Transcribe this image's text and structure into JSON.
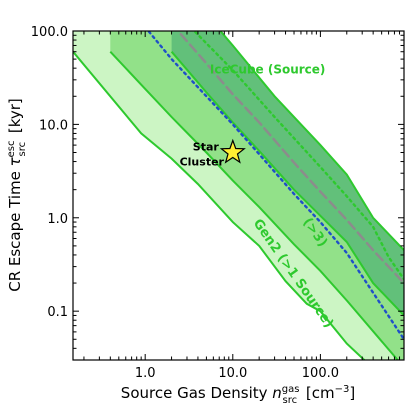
{
  "chart_data": {
    "type": "area",
    "title": "",
    "xlabel": "Source Gas Density $n_{\\rm src}^{\\rm gas}$ [cm$^{-3}$]",
    "xlabel_parts": {
      "pre": "Source Gas Density ",
      "var": "n",
      "sup": "gas",
      "sub": "src",
      "post": " [cm",
      "unit_sup": "−3",
      "close": "]"
    },
    "ylabel_parts": {
      "pre": "CR Escape Time ",
      "var": "τ",
      "sup": "esc",
      "sub": "src",
      "post": " [kyr]"
    },
    "xscale": "log",
    "yscale": "log",
    "xlim": [
      0.15,
      900
    ],
    "ylim": [
      0.03,
      100
    ],
    "x_ticks": [
      {
        "value": 1.0,
        "label": "1.0"
      },
      {
        "value": 10.0,
        "label": "10.0"
      },
      {
        "value": 100.0,
        "label": "100.0"
      }
    ],
    "y_ticks": [
      {
        "value": 0.1,
        "label": "0.1"
      },
      {
        "value": 1.0,
        "label": "1.0"
      },
      {
        "value": 10.0,
        "label": "10.0"
      },
      {
        "value": 100.0,
        "label": "100.0"
      }
    ],
    "bands": [
      {
        "label": "Gen2 (>1 Source)",
        "fill": "#ccf5c4",
        "edge": "#2ec92e",
        "lower": [
          [
            0.15,
            60
          ],
          [
            0.9,
            8
          ],
          [
            2.0,
            4.3
          ],
          [
            4.0,
            2.3
          ],
          [
            10.0,
            0.9
          ],
          [
            20.0,
            0.5
          ],
          [
            40.0,
            0.21
          ],
          [
            70.0,
            0.12
          ],
          [
            100.0,
            0.1
          ],
          [
            200.0,
            0.045
          ],
          [
            900.0,
            0.012
          ]
        ],
        "upper": [
          [
            0.15,
            600
          ],
          [
            1.0,
            60
          ],
          [
            2.0,
            30
          ],
          [
            5.0,
            12
          ],
          [
            10.0,
            6.5
          ],
          [
            20.0,
            3.2
          ],
          [
            50.0,
            1.25
          ],
          [
            100.0,
            0.62
          ],
          [
            200.0,
            0.3
          ],
          [
            900.0,
            0.07
          ]
        ]
      },
      {
        "label": "(>3)",
        "fill": "#92e189",
        "edge": "#2ec92e",
        "lower": [
          [
            0.4,
            60
          ],
          [
            1.0,
            24
          ],
          [
            2.0,
            12
          ],
          [
            5.0,
            5.0
          ],
          [
            10.0,
            2.5
          ],
          [
            20.0,
            1.3
          ],
          [
            50.0,
            0.52
          ],
          [
            100.0,
            0.27
          ],
          [
            200.0,
            0.13
          ],
          [
            900.0,
            0.025
          ]
        ],
        "upper": [
          [
            0.4,
            900
          ],
          [
            1.0,
            200
          ],
          [
            3.0,
            70
          ],
          [
            10.0,
            20
          ],
          [
            30.0,
            6.5
          ],
          [
            100.0,
            2.1
          ],
          [
            200.0,
            1.0
          ],
          [
            900.0,
            0.3
          ]
        ]
      },
      {
        "label": "IceCube (Source)",
        "fill": "#62c07a",
        "edge": "#2ec92e",
        "lower": [
          [
            2.0,
            60
          ],
          [
            5.0,
            22
          ],
          [
            10.0,
            10.5
          ],
          [
            20.0,
            5.2
          ],
          [
            50.0,
            2.0
          ],
          [
            100.0,
            1.05
          ],
          [
            200.0,
            0.55
          ],
          [
            400.0,
            0.2
          ],
          [
            900.0,
            0.09
          ]
        ],
        "upper": [
          [
            2.0,
            400
          ],
          [
            5.0,
            150
          ],
          [
            10.0,
            70
          ],
          [
            30.0,
            20
          ],
          [
            100.0,
            6.0
          ],
          [
            200.0,
            2.9
          ],
          [
            400.0,
            1.0
          ],
          [
            900.0,
            0.45
          ]
        ]
      }
    ],
    "lines": [
      {
        "style": "dotted",
        "color": "#2ec92e",
        "points": [
          [
            3.0,
            120
          ],
          [
            10.0,
            38
          ],
          [
            30.0,
            12
          ],
          [
            100.0,
            3.5
          ],
          [
            200.0,
            1.7
          ],
          [
            400.0,
            0.8
          ],
          [
            600.0,
            0.38
          ],
          [
            900.0,
            0.22
          ]
        ]
      },
      {
        "style": "dashed",
        "color": "#8c8c8c",
        "points": [
          [
            2.0,
            120
          ],
          [
            5.0,
            45
          ],
          [
            10.0,
            21
          ],
          [
            20.0,
            10.5
          ],
          [
            50.0,
            3.9
          ],
          [
            100.0,
            1.9
          ],
          [
            200.0,
            0.95
          ],
          [
            400.0,
            0.45
          ],
          [
            900.0,
            0.2
          ]
        ]
      },
      {
        "style": "dotted",
        "color": "#1f4fc8",
        "points": [
          [
            1.0,
            110
          ],
          [
            2.0,
            50
          ],
          [
            5.0,
            20
          ],
          [
            10.0,
            10
          ],
          [
            20.0,
            4.8
          ],
          [
            50.0,
            1.8
          ],
          [
            100.0,
            0.9
          ],
          [
            200.0,
            0.42
          ],
          [
            900.0,
            0.05
          ]
        ]
      }
    ],
    "markers": [
      {
        "label": "Star\nCluster",
        "label_lines": [
          "Star",
          "Cluster"
        ],
        "shape": "star",
        "x": 10.0,
        "y": 5.0,
        "fill": "#ffee33",
        "edge": "#000000"
      }
    ],
    "annotations": [
      {
        "text": "IceCube (Source)",
        "color": "#2ec92e",
        "x": 25.0,
        "y": 35.0,
        "rotation": 0
      },
      {
        "text": "(>3)",
        "color": "#2ec92e",
        "x": 80.0,
        "y": 0.66,
        "rotation": 55
      },
      {
        "text": "Gen2 (>1 Source)",
        "color": "#2ec92e",
        "x": 45.0,
        "y": 0.24,
        "rotation": 55
      }
    ],
    "grid": false,
    "legend": "none"
  }
}
